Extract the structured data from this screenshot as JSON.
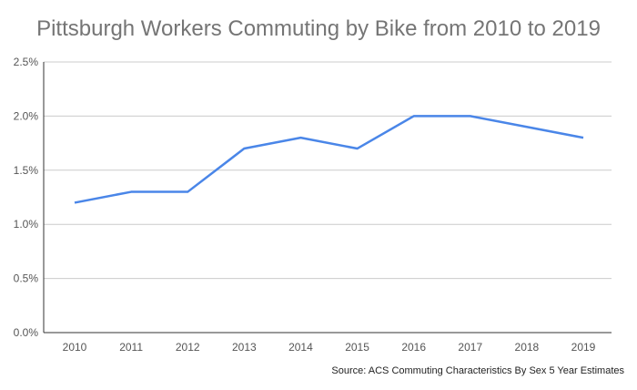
{
  "chart_data": {
    "type": "line",
    "title": "Pittsburgh Workers Commuting by Bike from 2010 to 2019",
    "x": [
      "2010",
      "2011",
      "2012",
      "2013",
      "2014",
      "2015",
      "2016",
      "2017",
      "2018",
      "2019"
    ],
    "series": [
      {
        "values": [
          1.2,
          1.3,
          1.3,
          1.7,
          1.8,
          1.7,
          2.0,
          2.0,
          1.9,
          1.8
        ],
        "color": "#4a86e8"
      }
    ],
    "ylim": [
      0,
      2.5
    ],
    "yticks": [
      "0.0%",
      "0.5%",
      "1.0%",
      "1.5%",
      "2.0%",
      "2.5%"
    ],
    "ytick_values": [
      0,
      0.5,
      1.0,
      1.5,
      2.0,
      2.5
    ],
    "grid": true,
    "xlabel": "",
    "ylabel": "",
    "source": "Source: ACS Commuting Characteristics By Sex 5 Year Estimates"
  }
}
